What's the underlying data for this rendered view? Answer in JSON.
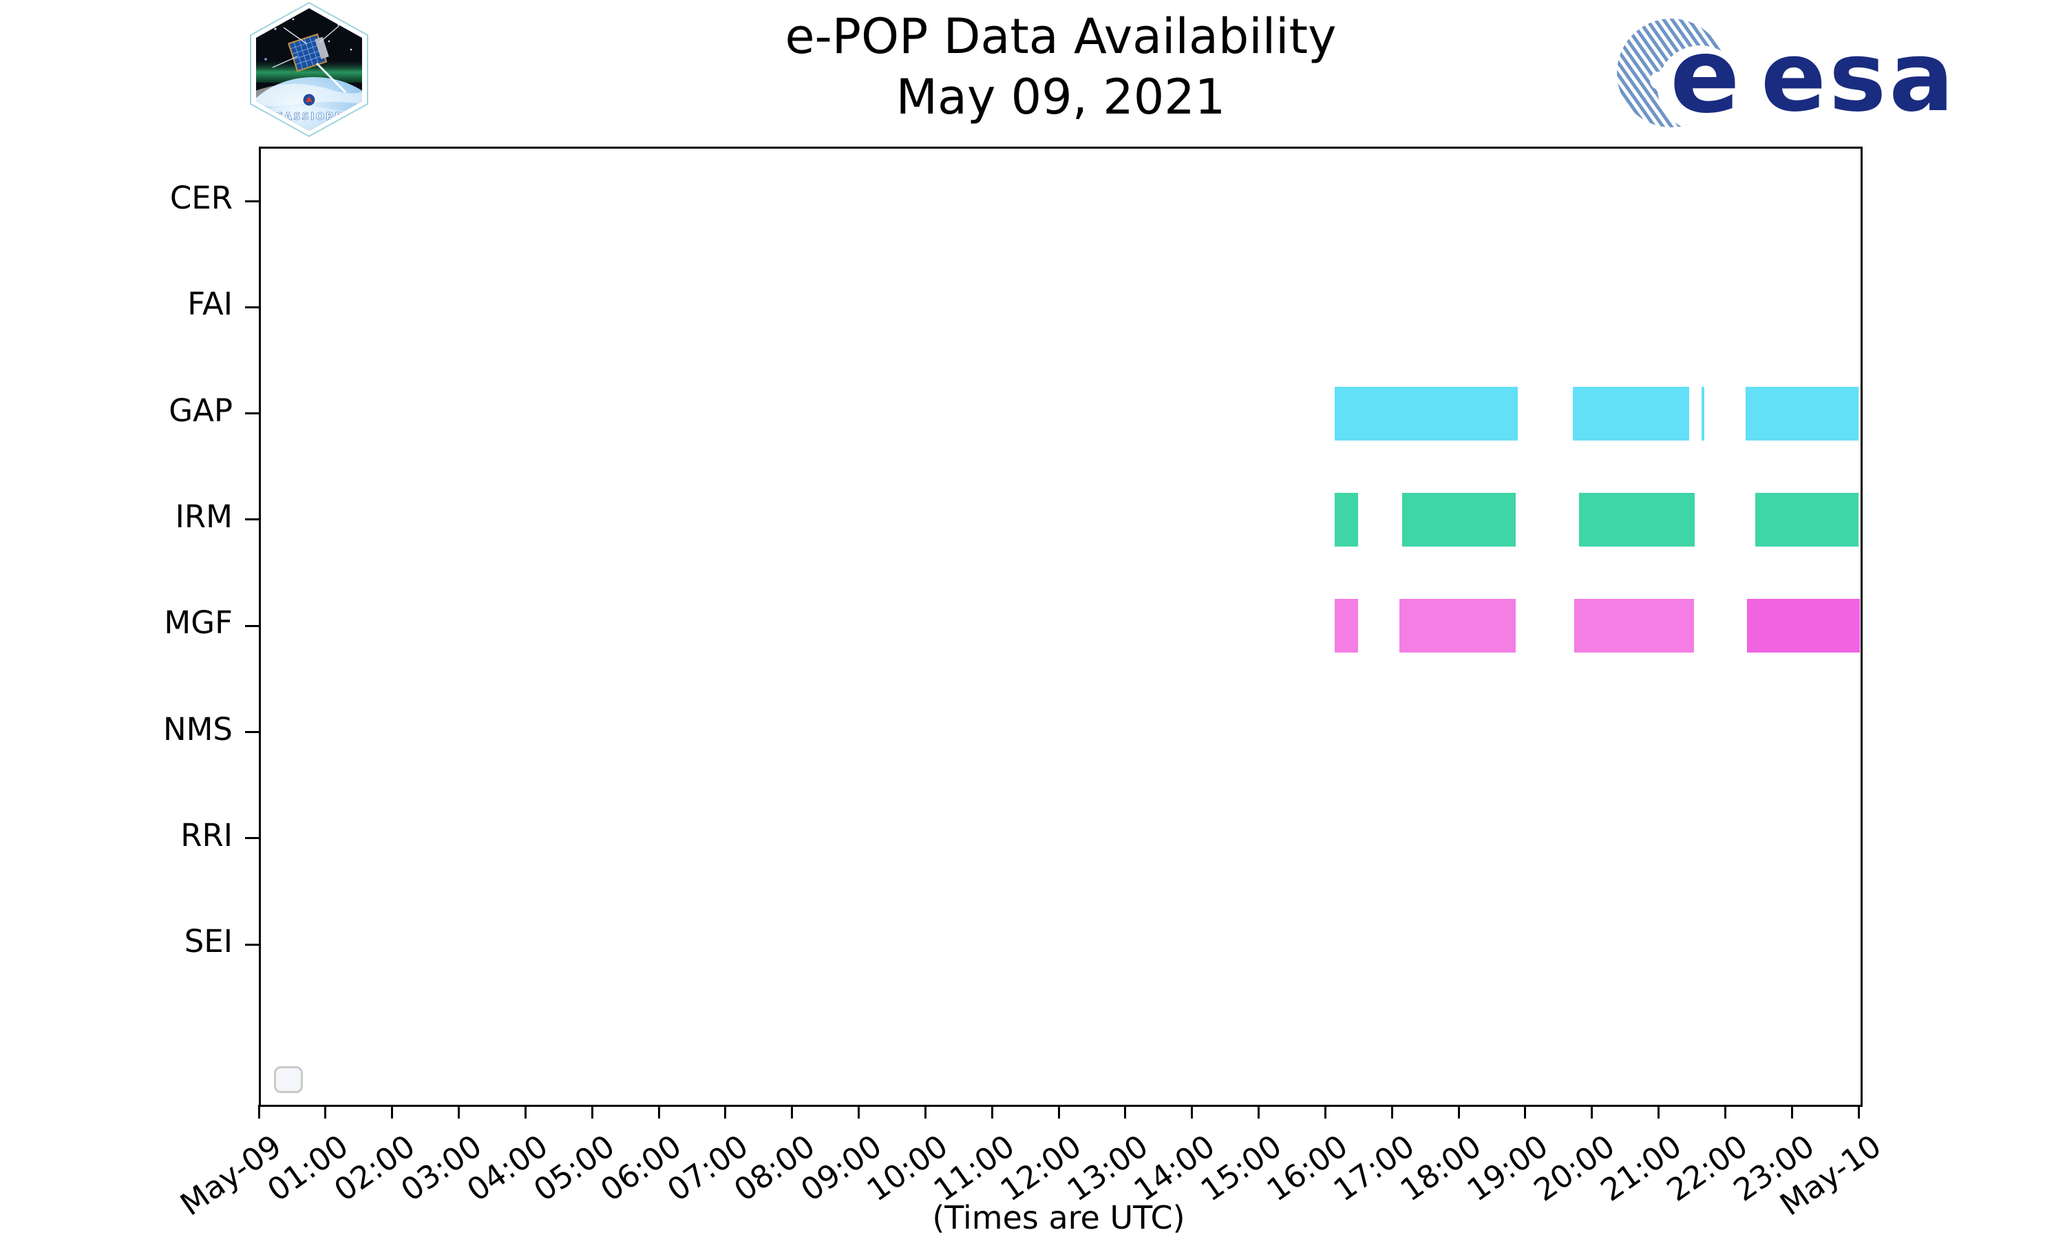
{
  "header": {
    "title_line1": "e-POP Data Availability",
    "title_line2": "May 09, 2021",
    "cassiope_patch_label": "CASSIOPE",
    "esa_wordmark": "esa",
    "esa_e_glyph": "e"
  },
  "footer": {
    "caption": "(Times are UTC)"
  },
  "colors": {
    "gap_bar": "#63dff8",
    "irm_bar": "#3ed5a7",
    "mgf_bar": "#f47ee4",
    "mgf_bar_last": "#f263e2",
    "axis": "#000000",
    "esa_navy": "#1a2c80",
    "esa_stripe_blue": "#6f95c8",
    "legend_box_border": "#c9c9c9"
  },
  "chart_data": {
    "type": "bar",
    "subtype": "horizontal-availability-timeline",
    "title": "e-POP Data Availability",
    "subtitle": "May 09, 2021",
    "xlabel": "(Times are UTC)",
    "ylabel": "",
    "grid": false,
    "legend": "empty-box-bottom-left",
    "categories": [
      "CER",
      "FAI",
      "GAP",
      "IRM",
      "MGF",
      "NMS",
      "RRI",
      "SEI"
    ],
    "empty_categories": [
      "CER",
      "FAI",
      "NMS",
      "RRI",
      "SEI"
    ],
    "x_axis": {
      "unit": "time (UTC), hours of May 09 2021",
      "range_hours": [
        0,
        24
      ],
      "tick_labels": [
        "May-09",
        "01:00",
        "02:00",
        "03:00",
        "04:00",
        "05:00",
        "06:00",
        "07:00",
        "08:00",
        "09:00",
        "10:00",
        "11:00",
        "12:00",
        "13:00",
        "14:00",
        "15:00",
        "16:00",
        "17:00",
        "18:00",
        "19:00",
        "20:00",
        "21:00",
        "22:00",
        "23:00",
        "May-10"
      ]
    },
    "series": [
      {
        "name": "GAP",
        "color": "#63dff8",
        "segments": [
          {
            "start": "16:08",
            "end": "18:53",
            "start_h": 16.14,
            "end_h": 18.89
          },
          {
            "start": "19:43",
            "end": "21:28",
            "start_h": 19.71,
            "end_h": 21.46
          },
          {
            "start": "21:39",
            "end": "21:41",
            "start_h": 21.65,
            "end_h": 21.69
          },
          {
            "start": "22:19",
            "end": "24:00",
            "start_h": 22.31,
            "end_h": 24.0
          }
        ]
      },
      {
        "name": "IRM",
        "color": "#3ed5a7",
        "segments": [
          {
            "start": "16:08",
            "end": "16:29",
            "start_h": 16.14,
            "end_h": 16.49
          },
          {
            "start": "17:09",
            "end": "18:52",
            "start_h": 17.15,
            "end_h": 18.86
          },
          {
            "start": "19:49",
            "end": "21:32",
            "start_h": 19.81,
            "end_h": 21.54
          },
          {
            "start": "22:27",
            "end": "24:00",
            "start_h": 22.45,
            "end_h": 24.0
          }
        ]
      },
      {
        "name": "MGF",
        "color": "#f47ee4",
        "segments": [
          {
            "start": "16:08",
            "end": "16:29",
            "start_h": 16.14,
            "end_h": 16.49
          },
          {
            "start": "17:07",
            "end": "18:52",
            "start_h": 17.11,
            "end_h": 18.86
          },
          {
            "start": "19:44",
            "end": "21:32",
            "start_h": 19.74,
            "end_h": 21.53
          },
          {
            "start": "22:20",
            "end": "24:01",
            "start_h": 22.33,
            "end_h": 24.02,
            "color": "#f263e2"
          }
        ]
      }
    ]
  }
}
